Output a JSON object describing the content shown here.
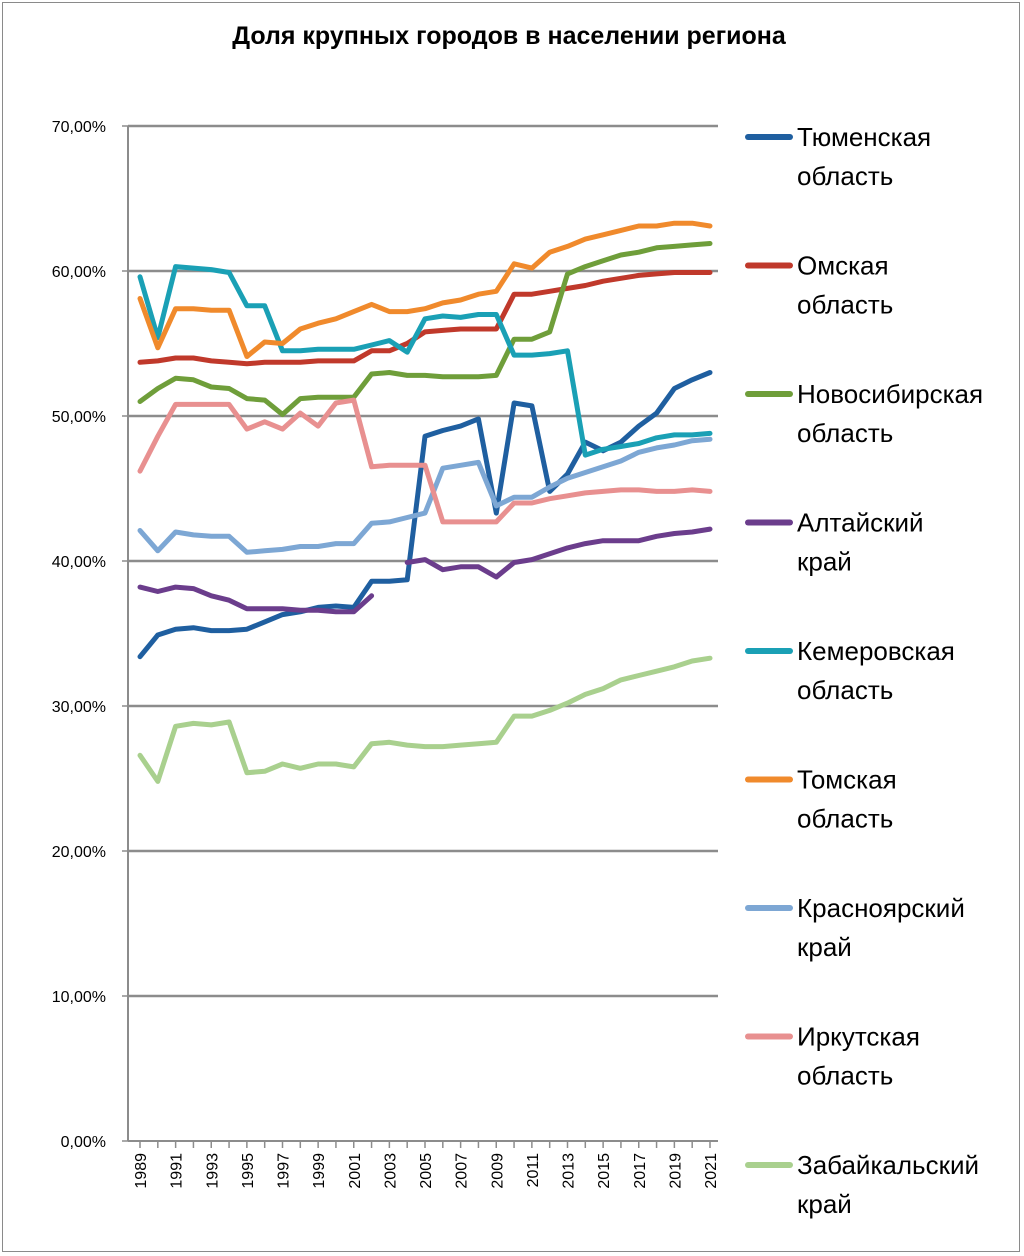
{
  "chart_data": {
    "type": "line",
    "title": "Доля крупных городов в населении региона",
    "xlabel": "",
    "ylabel": "",
    "ylim": [
      0,
      70
    ],
    "y_tick_labels": [
      "0,00%",
      "10,00%",
      "20,00%",
      "30,00%",
      "40,00%",
      "50,00%",
      "60,00%",
      "70,00%"
    ],
    "x": [
      1989,
      1990,
      1991,
      1992,
      1993,
      1994,
      1995,
      1996,
      1997,
      1998,
      1999,
      2000,
      2001,
      2002,
      2003,
      2004,
      2005,
      2006,
      2007,
      2008,
      2009,
      2010,
      2011,
      2012,
      2013,
      2014,
      2015,
      2016,
      2017,
      2018,
      2019,
      2020,
      2021
    ],
    "x_tick_labels": [
      "1989",
      "1991",
      "1993",
      "1995",
      "1997",
      "1999",
      "2001",
      "2003",
      "2005",
      "2007",
      "2009",
      "2011",
      "2013",
      "2015",
      "2017",
      "2019",
      "2021"
    ],
    "grid": true,
    "legend_position": "right",
    "series": [
      {
        "name": "Тюменская область",
        "color": "#1f5fa0",
        "values": [
          33.4,
          34.9,
          35.3,
          35.4,
          35.2,
          35.2,
          35.3,
          35.8,
          36.3,
          36.5,
          36.8,
          36.9,
          36.8,
          38.6,
          38.6,
          38.7,
          48.6,
          49.0,
          49.3,
          49.8,
          43.3,
          50.9,
          50.7,
          44.8,
          46.0,
          48.2,
          47.6,
          48.2,
          49.3,
          50.2,
          51.9,
          52.5,
          53.0
        ]
      },
      {
        "name": "Омская область",
        "color": "#c0392b",
        "values": [
          53.7,
          53.8,
          54.0,
          54.0,
          53.8,
          53.7,
          53.6,
          53.7,
          53.7,
          53.7,
          53.8,
          53.8,
          53.8,
          54.5,
          54.5,
          55.0,
          55.8,
          55.9,
          56.0,
          56.0,
          56.0,
          58.4,
          58.4,
          58.6,
          58.8,
          59.0,
          59.3,
          59.5,
          59.7,
          59.8,
          59.9,
          59.9,
          59.9
        ]
      },
      {
        "name": "Новосибирская область",
        "color": "#6f9e3a",
        "values": [
          51.0,
          51.9,
          52.6,
          52.5,
          52.0,
          51.9,
          51.2,
          51.1,
          50.1,
          51.2,
          51.3,
          51.3,
          51.3,
          52.9,
          53.0,
          52.8,
          52.8,
          52.7,
          52.7,
          52.7,
          52.8,
          55.3,
          55.3,
          55.8,
          59.8,
          60.3,
          60.7,
          61.1,
          61.3,
          61.6,
          61.7,
          61.8,
          61.9
        ]
      },
      {
        "name": "Алтайский край",
        "color": "#6b3d8c",
        "values": [
          38.2,
          37.9,
          38.2,
          38.1,
          37.6,
          37.3,
          36.7,
          36.7,
          36.7,
          36.6,
          36.6,
          36.5,
          36.5,
          37.6,
          null,
          39.9,
          40.1,
          39.4,
          39.6,
          39.6,
          38.9,
          39.9,
          40.1,
          40.5,
          40.9,
          41.2,
          41.4,
          41.4,
          41.4,
          41.7,
          41.9,
          42.0,
          42.2
        ]
      },
      {
        "name": "Кемеровская область",
        "color": "#1aa0b5",
        "values": [
          59.6,
          55.4,
          60.3,
          60.2,
          60.1,
          59.9,
          57.6,
          57.6,
          54.5,
          54.5,
          54.6,
          54.6,
          54.6,
          54.9,
          55.2,
          54.4,
          56.7,
          56.9,
          56.8,
          57.0,
          57.0,
          54.2,
          54.2,
          54.3,
          54.5,
          47.3,
          47.7,
          47.9,
          48.1,
          48.5,
          48.7,
          48.7,
          48.8
        ]
      },
      {
        "name": "Томская область",
        "color": "#f08a2c",
        "values": [
          58.1,
          54.7,
          57.4,
          57.4,
          57.3,
          57.3,
          54.1,
          55.1,
          55.0,
          56.0,
          56.4,
          56.7,
          57.2,
          57.7,
          57.2,
          57.2,
          57.4,
          57.8,
          58.0,
          58.4,
          58.6,
          60.5,
          60.2,
          61.3,
          61.7,
          62.2,
          62.5,
          62.8,
          63.1,
          63.1,
          63.3,
          63.3,
          63.1
        ]
      },
      {
        "name": "Красноярский край",
        "color": "#7da7d4",
        "values": [
          42.1,
          40.7,
          42.0,
          41.8,
          41.7,
          41.7,
          40.6,
          40.7,
          40.8,
          41.0,
          41.0,
          41.2,
          41.2,
          42.6,
          42.7,
          43.0,
          43.3,
          46.4,
          46.6,
          46.8,
          43.8,
          44.4,
          44.4,
          45.1,
          45.7,
          46.1,
          46.5,
          46.9,
          47.5,
          47.8,
          48.0,
          48.3,
          48.4
        ]
      },
      {
        "name": "Иркутская область",
        "color": "#e89090",
        "values": [
          46.2,
          48.6,
          50.8,
          50.8,
          50.8,
          50.8,
          49.1,
          49.6,
          49.1,
          50.2,
          49.3,
          50.9,
          51.1,
          46.5,
          46.6,
          46.6,
          46.6,
          42.7,
          42.7,
          42.7,
          42.7,
          44.0,
          44.0,
          44.3,
          44.5,
          44.7,
          44.8,
          44.9,
          44.9,
          44.8,
          44.8,
          44.9,
          44.8
        ]
      },
      {
        "name": "Забайкальский край",
        "color": "#a9d08e",
        "values": [
          26.6,
          24.8,
          28.6,
          28.8,
          28.7,
          28.9,
          25.4,
          25.5,
          26.0,
          25.7,
          26.0,
          26.0,
          25.8,
          27.4,
          27.5,
          27.3,
          27.2,
          27.2,
          27.3,
          27.4,
          27.5,
          29.3,
          29.3,
          29.7,
          30.2,
          30.8,
          31.2,
          31.8,
          32.1,
          32.4,
          32.7,
          33.1,
          33.3
        ]
      }
    ],
    "legend_lines": [
      [
        "Тюменская",
        "область"
      ],
      [
        "Омская",
        "область"
      ],
      [
        "Новосибирская",
        "область"
      ],
      [
        "Алтайский",
        "край"
      ],
      [
        "Кемеровская",
        "область"
      ],
      [
        "Томская",
        "область"
      ],
      [
        "Красноярский",
        "край"
      ],
      [
        "Иркутская",
        "область"
      ],
      [
        "Забайкальский",
        "край"
      ]
    ]
  }
}
